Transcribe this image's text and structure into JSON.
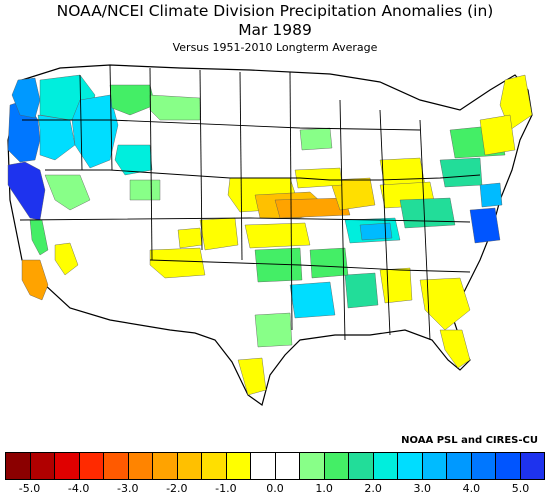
{
  "header": {
    "title_line1": "NOAA/NCEI Climate Division Precipitation Anomalies (in)",
    "title_line2": "Mar 1989",
    "subtitle": "Versus 1951-2010 Longterm Average"
  },
  "credit": "NOAA PSL and CIRES-CU",
  "colors": {
    "bins": [
      "#8b0000",
      "#b00000",
      "#e00000",
      "#ff2a00",
      "#ff5a00",
      "#ff8400",
      "#ffa300",
      "#ffc000",
      "#ffdf00",
      "#ffff00",
      "#ffffff",
      "#ffffff",
      "#88ff88",
      "#44ee66",
      "#22dd99",
      "#00eedd",
      "#00ddff",
      "#00bbff",
      "#0099ff",
      "#0077ff",
      "#0055ff",
      "#1e33ee"
    ],
    "outline": "#000000"
  },
  "legend": {
    "ticks": [
      "-5.0",
      "-4.0",
      "-3.0",
      "-2.0",
      "-1.0",
      "0.0",
      "1.0",
      "2.0",
      "3.0",
      "4.0",
      "5.0"
    ]
  }
}
